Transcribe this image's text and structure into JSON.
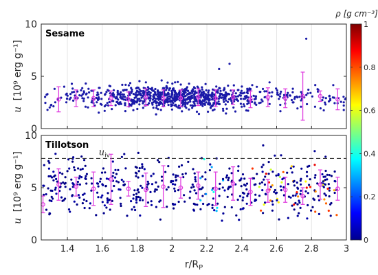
{
  "chart_data": [
    {
      "type": "scatter",
      "panel_label": "Sesame",
      "ylabel_symbol": "u",
      "ylabel_units": "[10⁹ erg g⁻¹]",
      "xlim": [
        1.25,
        3.0
      ],
      "ylim": [
        0,
        10
      ],
      "y_ticks": [
        "0",
        "5",
        "10"
      ],
      "grid": "vertical",
      "marker_color": "#1a1aa8",
      "scatter_summary": {
        "point_count_approx": 900,
        "x_range": [
          1.27,
          3.0
        ],
        "y_typical_range": [
          1.5,
          4.5
        ],
        "outliers": [
          {
            "x": 2.77,
            "y": 8.6
          },
          {
            "x": 2.33,
            "y": 6.2
          },
          {
            "x": 2.27,
            "y": 5.7
          }
        ],
        "color_encoding": "density; essentially all points near 0 g cm^-3 (dark blue)"
      },
      "binned_means": {
        "marker": "open circle with error bars",
        "color": "#e040e0",
        "points": [
          {
            "x": 1.35,
            "y": 2.8,
            "err": 1.2
          },
          {
            "x": 1.45,
            "y": 2.9,
            "err": 0.8
          },
          {
            "x": 1.55,
            "y": 2.9,
            "err": 0.8
          },
          {
            "x": 1.65,
            "y": 2.9,
            "err": 0.7
          },
          {
            "x": 1.75,
            "y": 2.8,
            "err": 0.7
          },
          {
            "x": 1.85,
            "y": 3.0,
            "err": 0.8
          },
          {
            "x": 1.95,
            "y": 2.9,
            "err": 0.8
          },
          {
            "x": 2.05,
            "y": 2.9,
            "err": 0.8
          },
          {
            "x": 2.15,
            "y": 3.0,
            "err": 0.8
          },
          {
            "x": 2.25,
            "y": 2.9,
            "err": 0.8
          },
          {
            "x": 2.35,
            "y": 3.0,
            "err": 0.7
          },
          {
            "x": 2.45,
            "y": 2.8,
            "err": 0.8
          },
          {
            "x": 2.55,
            "y": 3.0,
            "err": 0.9
          },
          {
            "x": 2.65,
            "y": 2.9,
            "err": 0.9
          },
          {
            "x": 2.75,
            "y": 3.1,
            "err": 2.3
          },
          {
            "x": 2.85,
            "y": 3.1,
            "err": 0.5
          },
          {
            "x": 2.95,
            "y": 2.8,
            "err": 1.0
          }
        ]
      }
    },
    {
      "type": "scatter",
      "panel_label": "Tillotson",
      "ylabel_symbol": "u",
      "ylabel_units": "[10⁹ erg g⁻¹]",
      "xlabel": "r/R",
      "xlabel_subscript": "P",
      "xlim": [
        1.25,
        3.0
      ],
      "ylim": [
        0,
        10
      ],
      "x_ticks": [
        "1.4",
        "1.6",
        "1.8",
        "2",
        "2.2",
        "2.4",
        "2.6",
        "2.8",
        "3"
      ],
      "y_ticks": [
        "0",
        "5",
        "10"
      ],
      "grid": "vertical",
      "marker_color": "#1a1aa8",
      "reference_line": {
        "y": 7.8,
        "label": "u",
        "label_subscript": "iv",
        "style": "dashed",
        "color": "#333333"
      },
      "scatter_summary": {
        "point_count_approx": 500,
        "x_range": [
          1.27,
          3.0
        ],
        "y_typical_range": [
          2.0,
          9.8
        ],
        "color_encoding": "density; mostly near 0, some points up to ~0.4 near r/R_P 2.2–2.3, higher-density points (up to ~0.9) near r/R_P 2.45–2.9"
      },
      "binned_means": {
        "marker": "open circle with error bars",
        "color": "#e040e0",
        "points": [
          {
            "x": 1.26,
            "y": 3.4,
            "err": 0.8
          },
          {
            "x": 1.35,
            "y": 5.3,
            "err": 1.5
          },
          {
            "x": 1.45,
            "y": 5.1,
            "err": 0.9
          },
          {
            "x": 1.55,
            "y": 4.9,
            "err": 1.6
          },
          {
            "x": 1.65,
            "y": 5.8,
            "err": 2.4
          },
          {
            "x": 1.75,
            "y": 4.9,
            "err": 0.7
          },
          {
            "x": 1.85,
            "y": 4.8,
            "err": 1.6
          },
          {
            "x": 1.95,
            "y": 5.1,
            "err": 2.0
          },
          {
            "x": 2.05,
            "y": 5.0,
            "err": 1.0
          },
          {
            "x": 2.15,
            "y": 5.2,
            "err": 1.3
          },
          {
            "x": 2.25,
            "y": 4.9,
            "err": 1.6
          },
          {
            "x": 2.35,
            "y": 5.4,
            "err": 1.6
          },
          {
            "x": 2.45,
            "y": 4.6,
            "err": 1.3
          },
          {
            "x": 2.55,
            "y": 4.7,
            "err": 1.1
          },
          {
            "x": 2.65,
            "y": 4.8,
            "err": 1.2
          },
          {
            "x": 2.75,
            "y": 4.2,
            "err": 0.8
          },
          {
            "x": 2.85,
            "y": 5.3,
            "err": 1.4
          },
          {
            "x": 2.95,
            "y": 4.9,
            "err": 1.1
          }
        ]
      }
    }
  ],
  "colorbar": {
    "label": "ρ [g cm⁻³]",
    "ticks": [
      "0",
      "0.2",
      "0.4",
      "0.6",
      "0.8",
      "1"
    ],
    "range": [
      0,
      1
    ],
    "colormap": "jet"
  }
}
